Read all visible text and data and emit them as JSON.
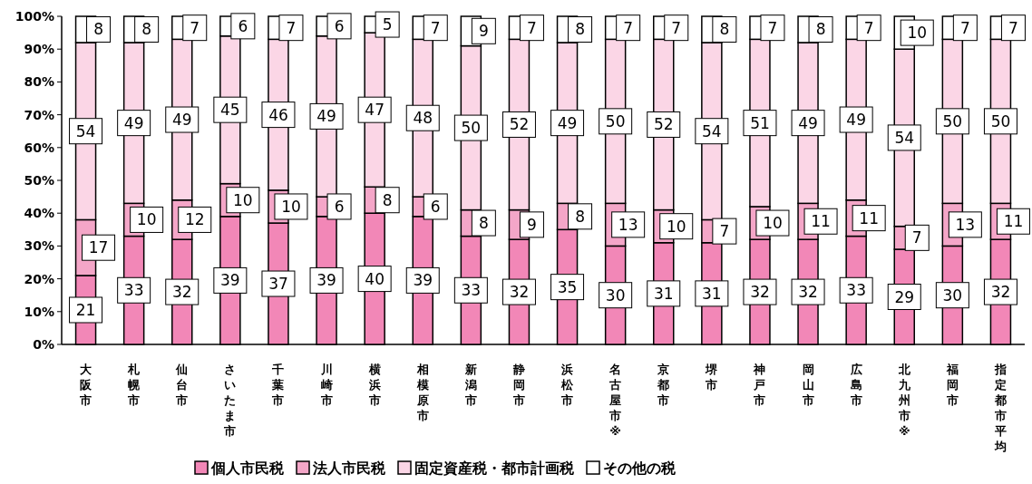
{
  "chart_data": {
    "type": "bar",
    "stacked": true,
    "data_labels": true,
    "legend": "bottom",
    "grid": false,
    "categories": [
      "大阪市",
      "札幌市",
      "仙台市",
      "さいたま市",
      "千葉市",
      "川崎市",
      "横浜市",
      "相模原市",
      "新潟市",
      "静岡市",
      "浜松市",
      "名古屋市※",
      "京都市",
      "堺市",
      "神戸市",
      "岡山市",
      "広島市",
      "北九州市※",
      "福岡市",
      "指定都市平均"
    ],
    "ylim": [
      0,
      100
    ],
    "yticks": [
      {
        "value": 0,
        "label": "0%"
      },
      {
        "value": 10,
        "label": "10%"
      },
      {
        "value": 20,
        "label": "20%"
      },
      {
        "value": 30,
        "label": "30%"
      },
      {
        "value": 40,
        "label": "40%"
      },
      {
        "value": 50,
        "label": "50%"
      },
      {
        "value": 60,
        "label": "60%"
      },
      {
        "value": 70,
        "label": "70%"
      },
      {
        "value": 80,
        "label": "80%"
      },
      {
        "value": 90,
        "label": "90%"
      },
      {
        "value": 100,
        "label": "100%"
      }
    ],
    "series": [
      {
        "name": "個人市民税",
        "color": "#f287b7",
        "values": [
          21,
          33,
          32,
          39,
          37,
          39,
          40,
          39,
          33,
          32,
          35,
          30,
          31,
          31,
          32,
          32,
          33,
          29,
          30,
          32
        ]
      },
      {
        "name": "法人市民税",
        "color": "#f4a6c8",
        "values": [
          17,
          10,
          12,
          10,
          10,
          6,
          8,
          6,
          8,
          9,
          8,
          13,
          10,
          7,
          10,
          11,
          11,
          7,
          13,
          11
        ]
      },
      {
        "name": "固定資産税・都市計画税",
        "color": "#fbd6e6",
        "values": [
          54,
          49,
          49,
          45,
          46,
          49,
          47,
          48,
          50,
          52,
          49,
          50,
          52,
          54,
          51,
          49,
          49,
          54,
          50,
          50
        ]
      },
      {
        "name": "その他の税",
        "color": "#ffffff",
        "values": [
          8,
          8,
          7,
          6,
          7,
          6,
          5,
          7,
          9,
          7,
          8,
          7,
          7,
          8,
          7,
          8,
          7,
          10,
          7,
          7
        ]
      }
    ]
  }
}
